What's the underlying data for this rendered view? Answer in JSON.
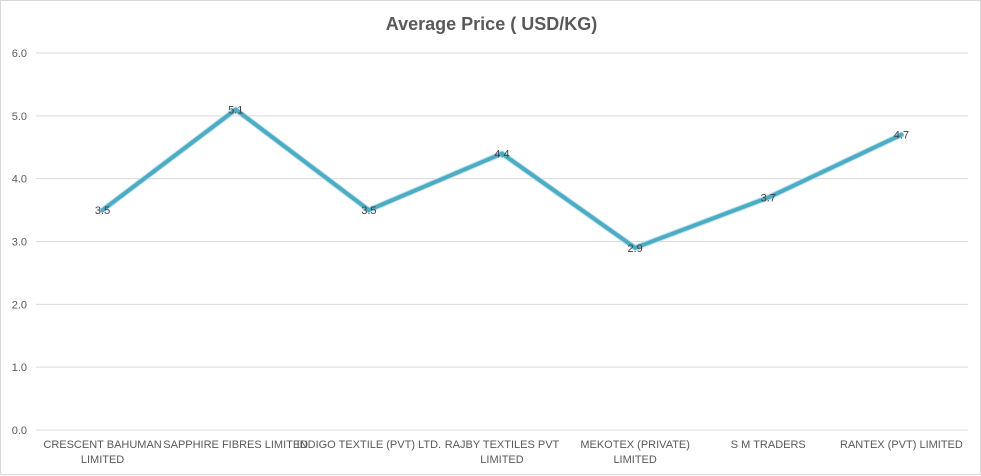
{
  "chart_data": {
    "type": "line",
    "title": "Average Price ( USD/KG)",
    "xlabel": "",
    "ylabel": "",
    "categories": [
      [
        "CRESCENT BAHUMAN",
        "LIMITED"
      ],
      [
        "SAPPHIRE FIBRES LIMITED"
      ],
      [
        "INDIGO TEXTILE (PVT) LTD."
      ],
      [
        "RAJBY TEXTILES PVT",
        "LIMITED"
      ],
      [
        "MEKOTEX (PRIVATE)",
        "LIMITED"
      ],
      [
        "S M TRADERS"
      ],
      [
        "RANTEX (PVT) LIMITED"
      ]
    ],
    "series": [
      {
        "values": [
          3.5,
          5.1,
          3.5,
          4.4,
          2.9,
          3.7,
          4.7
        ]
      }
    ],
    "data_labels": [
      "3.5",
      "5.1",
      "3.5",
      "4.4",
      "2.9",
      "3.7",
      "4.7"
    ],
    "ylim": [
      0,
      6
    ],
    "yticks": [
      "0.0",
      "1.0",
      "2.0",
      "3.0",
      "4.0",
      "5.0",
      "6.0"
    ],
    "grid": true,
    "legend": "none",
    "colors": {
      "line": "#4bacc6",
      "grid": "#d9d9d9",
      "axis_text": "#595959",
      "label_text": "#404040"
    }
  }
}
